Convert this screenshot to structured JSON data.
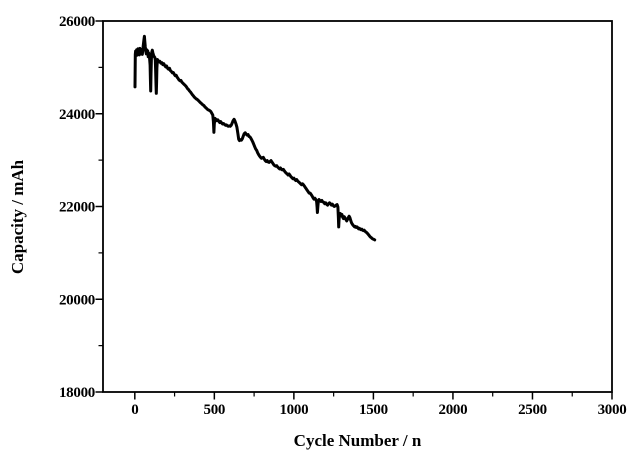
{
  "figure": {
    "background": "#ffffff",
    "axis_color": "#000000"
  },
  "chart_data": {
    "type": "line",
    "title": "",
    "xlabel": "Cycle Number / n",
    "ylabel": "Capacity / mAh",
    "xlim": [
      -200,
      3000
    ],
    "ylim": [
      18000,
      26000
    ],
    "x_major_ticks": [
      0,
      500,
      1000,
      1500,
      2000,
      2500,
      3000
    ],
    "x_tick_labels": [
      "0",
      "500",
      "1000",
      "1500",
      "2000",
      "2500",
      "3000"
    ],
    "x_minor_ticks": [
      250,
      750,
      1250,
      1750,
      2250,
      2750
    ],
    "y_major_ticks": [
      18000,
      20000,
      22000,
      24000,
      26000
    ],
    "y_tick_labels": [
      "18000",
      "20000",
      "22000",
      "24000",
      "26000"
    ],
    "y_minor_ticks": [
      19000,
      21000,
      23000,
      25000
    ],
    "grid": false,
    "legend": null,
    "line_color": "#000000",
    "line_width": 3,
    "series": [
      {
        "name": "capacity",
        "points": [
          [
            1,
            24580
          ],
          [
            3,
            25280
          ],
          [
            5,
            25350
          ],
          [
            8,
            25300
          ],
          [
            11,
            25380
          ],
          [
            14,
            25260
          ],
          [
            17,
            25340
          ],
          [
            20,
            25400
          ],
          [
            23,
            25300
          ],
          [
            26,
            25360
          ],
          [
            29,
            25270
          ],
          [
            32,
            25410
          ],
          [
            35,
            25330
          ],
          [
            38,
            25390
          ],
          [
            41,
            25300
          ],
          [
            44,
            25350
          ],
          [
            47,
            25280
          ],
          [
            50,
            25370
          ],
          [
            53,
            25460
          ],
          [
            57,
            25590
          ],
          [
            60,
            25670
          ],
          [
            63,
            25560
          ],
          [
            66,
            25440
          ],
          [
            69,
            25350
          ],
          [
            72,
            25290
          ],
          [
            75,
            25380
          ],
          [
            78,
            25300
          ],
          [
            81,
            25360
          ],
          [
            84,
            25230
          ],
          [
            87,
            25310
          ],
          [
            90,
            25260
          ],
          [
            93,
            25190
          ],
          [
            96,
            25050
          ],
          [
            98,
            24750
          ],
          [
            100,
            24490
          ],
          [
            102,
            24850
          ],
          [
            104,
            25190
          ],
          [
            107,
            25330
          ],
          [
            110,
            25370
          ],
          [
            114,
            25310
          ],
          [
            118,
            25260
          ],
          [
            122,
            25230
          ],
          [
            126,
            25210
          ],
          [
            129,
            25160
          ],
          [
            131,
            24960
          ],
          [
            133,
            24640
          ],
          [
            135,
            24440
          ],
          [
            137,
            24680
          ],
          [
            139,
            24990
          ],
          [
            142,
            25170
          ],
          [
            146,
            25150
          ],
          [
            152,
            25120
          ],
          [
            158,
            25130
          ],
          [
            164,
            25090
          ],
          [
            170,
            25100
          ],
          [
            176,
            25060
          ],
          [
            182,
            25080
          ],
          [
            188,
            25040
          ],
          [
            194,
            25010
          ],
          [
            200,
            25030
          ],
          [
            206,
            24980
          ],
          [
            212,
            24960
          ],
          [
            218,
            24980
          ],
          [
            224,
            24930
          ],
          [
            230,
            24910
          ],
          [
            236,
            24880
          ],
          [
            242,
            24890
          ],
          [
            248,
            24850
          ],
          [
            254,
            24820
          ],
          [
            260,
            24830
          ],
          [
            266,
            24790
          ],
          [
            272,
            24760
          ],
          [
            278,
            24730
          ],
          [
            284,
            24710
          ],
          [
            290,
            24720
          ],
          [
            296,
            24680
          ],
          [
            302,
            24660
          ],
          [
            308,
            24640
          ],
          [
            314,
            24620
          ],
          [
            320,
            24600
          ],
          [
            326,
            24570
          ],
          [
            332,
            24540
          ],
          [
            338,
            24520
          ],
          [
            344,
            24490
          ],
          [
            350,
            24470
          ],
          [
            356,
            24440
          ],
          [
            362,
            24410
          ],
          [
            368,
            24390
          ],
          [
            374,
            24360
          ],
          [
            380,
            24340
          ],
          [
            386,
            24320
          ],
          [
            392,
            24310
          ],
          [
            398,
            24290
          ],
          [
            404,
            24270
          ],
          [
            410,
            24250
          ],
          [
            416,
            24230
          ],
          [
            422,
            24210
          ],
          [
            428,
            24190
          ],
          [
            434,
            24180
          ],
          [
            440,
            24150
          ],
          [
            446,
            24130
          ],
          [
            452,
            24110
          ],
          [
            458,
            24090
          ],
          [
            464,
            24080
          ],
          [
            470,
            24070
          ],
          [
            477,
            24050
          ],
          [
            484,
            24010
          ],
          [
            490,
            23970
          ],
          [
            494,
            23830
          ],
          [
            497,
            23600
          ],
          [
            500,
            23780
          ],
          [
            504,
            23900
          ],
          [
            510,
            23880
          ],
          [
            516,
            23850
          ],
          [
            522,
            23870
          ],
          [
            528,
            23840
          ],
          [
            534,
            23810
          ],
          [
            540,
            23830
          ],
          [
            546,
            23800
          ],
          [
            552,
            23780
          ],
          [
            558,
            23790
          ],
          [
            564,
            23770
          ],
          [
            570,
            23750
          ],
          [
            576,
            23760
          ],
          [
            582,
            23740
          ],
          [
            588,
            23730
          ],
          [
            594,
            23740
          ],
          [
            600,
            23730
          ],
          [
            606,
            23750
          ],
          [
            612,
            23800
          ],
          [
            618,
            23850
          ],
          [
            624,
            23880
          ],
          [
            630,
            23840
          ],
          [
            636,
            23780
          ],
          [
            642,
            23710
          ],
          [
            648,
            23570
          ],
          [
            653,
            23450
          ],
          [
            658,
            23420
          ],
          [
            664,
            23440
          ],
          [
            670,
            23430
          ],
          [
            676,
            23460
          ],
          [
            682,
            23520
          ],
          [
            688,
            23570
          ],
          [
            694,
            23590
          ],
          [
            700,
            23560
          ],
          [
            706,
            23540
          ],
          [
            712,
            23550
          ],
          [
            718,
            23510
          ],
          [
            724,
            23500
          ],
          [
            730,
            23470
          ],
          [
            736,
            23430
          ],
          [
            742,
            23390
          ],
          [
            748,
            23340
          ],
          [
            754,
            23290
          ],
          [
            760,
            23240
          ],
          [
            766,
            23210
          ],
          [
            772,
            23160
          ],
          [
            778,
            23120
          ],
          [
            784,
            23090
          ],
          [
            790,
            23060
          ],
          [
            796,
            23040
          ],
          [
            802,
            23050
          ],
          [
            808,
            23060
          ],
          [
            814,
            23020
          ],
          [
            820,
            22990
          ],
          [
            826,
            22970
          ],
          [
            832,
            22990
          ],
          [
            838,
            22960
          ],
          [
            844,
            22950
          ],
          [
            850,
            22970
          ],
          [
            856,
            22990
          ],
          [
            862,
            22960
          ],
          [
            868,
            22930
          ],
          [
            874,
            22900
          ],
          [
            880,
            22880
          ],
          [
            886,
            22870
          ],
          [
            892,
            22880
          ],
          [
            898,
            22850
          ],
          [
            904,
            22830
          ],
          [
            910,
            22810
          ],
          [
            916,
            22830
          ],
          [
            922,
            22800
          ],
          [
            928,
            22790
          ],
          [
            934,
            22800
          ],
          [
            940,
            22770
          ],
          [
            946,
            22740
          ],
          [
            952,
            22720
          ],
          [
            958,
            22700
          ],
          [
            964,
            22680
          ],
          [
            970,
            22700
          ],
          [
            976,
            22670
          ],
          [
            982,
            22640
          ],
          [
            988,
            22620
          ],
          [
            994,
            22600
          ],
          [
            1000,
            22610
          ],
          [
            1006,
            22580
          ],
          [
            1012,
            22560
          ],
          [
            1018,
            22580
          ],
          [
            1024,
            22550
          ],
          [
            1030,
            22530
          ],
          [
            1036,
            22510
          ],
          [
            1042,
            22490
          ],
          [
            1048,
            22470
          ],
          [
            1054,
            22490
          ],
          [
            1060,
            22470
          ],
          [
            1066,
            22440
          ],
          [
            1072,
            22410
          ],
          [
            1078,
            22380
          ],
          [
            1084,
            22350
          ],
          [
            1090,
            22320
          ],
          [
            1096,
            22290
          ],
          [
            1102,
            22290
          ],
          [
            1108,
            22260
          ],
          [
            1114,
            22230
          ],
          [
            1120,
            22190
          ],
          [
            1126,
            22160
          ],
          [
            1132,
            22180
          ],
          [
            1138,
            22150
          ],
          [
            1143,
            22110
          ],
          [
            1146,
            21980
          ],
          [
            1148,
            21870
          ],
          [
            1151,
            22010
          ],
          [
            1154,
            22120
          ],
          [
            1158,
            22150
          ],
          [
            1164,
            22130
          ],
          [
            1170,
            22110
          ],
          [
            1176,
            22130
          ],
          [
            1182,
            22100
          ],
          [
            1188,
            22090
          ],
          [
            1194,
            22060
          ],
          [
            1200,
            22080
          ],
          [
            1206,
            22050
          ],
          [
            1212,
            22030
          ],
          [
            1218,
            22060
          ],
          [
            1224,
            22080
          ],
          [
            1230,
            22060
          ],
          [
            1236,
            22030
          ],
          [
            1242,
            22050
          ],
          [
            1248,
            22020
          ],
          [
            1254,
            22000
          ],
          [
            1260,
            22010
          ],
          [
            1266,
            22030
          ],
          [
            1272,
            22040
          ],
          [
            1277,
            21990
          ],
          [
            1280,
            21750
          ],
          [
            1282,
            21560
          ],
          [
            1284,
            21700
          ],
          [
            1287,
            21820
          ],
          [
            1292,
            21850
          ],
          [
            1297,
            21800
          ],
          [
            1302,
            21830
          ],
          [
            1307,
            21770
          ],
          [
            1312,
            21740
          ],
          [
            1317,
            21780
          ],
          [
            1322,
            21750
          ],
          [
            1327,
            21720
          ],
          [
            1332,
            21690
          ],
          [
            1337,
            21720
          ],
          [
            1342,
            21760
          ],
          [
            1347,
            21790
          ],
          [
            1352,
            21760
          ],
          [
            1357,
            21700
          ],
          [
            1362,
            21650
          ],
          [
            1367,
            21620
          ],
          [
            1372,
            21600
          ],
          [
            1377,
            21580
          ],
          [
            1382,
            21560
          ],
          [
            1387,
            21570
          ],
          [
            1392,
            21550
          ],
          [
            1397,
            21560
          ],
          [
            1402,
            21540
          ],
          [
            1407,
            21520
          ],
          [
            1412,
            21530
          ],
          [
            1417,
            21510
          ],
          [
            1422,
            21500
          ],
          [
            1427,
            21510
          ],
          [
            1432,
            21490
          ],
          [
            1437,
            21480
          ],
          [
            1442,
            21490
          ],
          [
            1447,
            21470
          ],
          [
            1452,
            21450
          ],
          [
            1457,
            21440
          ],
          [
            1462,
            21420
          ],
          [
            1467,
            21400
          ],
          [
            1472,
            21380
          ],
          [
            1477,
            21360
          ],
          [
            1482,
            21340
          ],
          [
            1487,
            21330
          ],
          [
            1492,
            21310
          ],
          [
            1497,
            21300
          ],
          [
            1503,
            21290
          ],
          [
            1508,
            21280
          ]
        ]
      }
    ]
  }
}
